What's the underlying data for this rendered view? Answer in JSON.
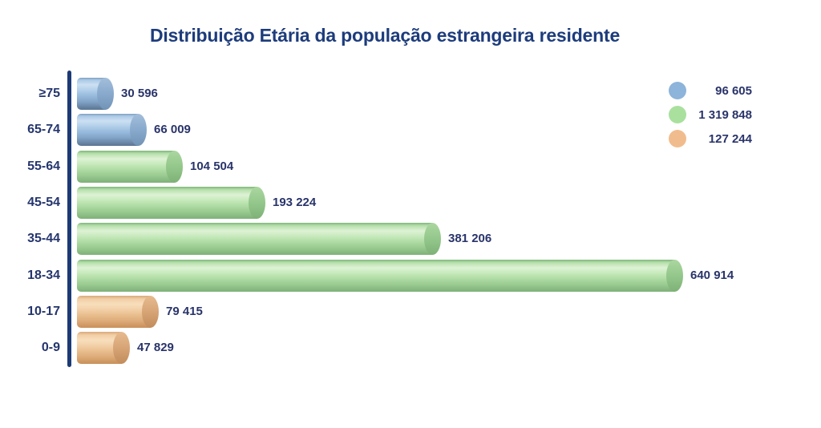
{
  "chart_data": {
    "type": "bar",
    "orientation": "horizontal",
    "title": "Distribuição Etária da população estrangeira residente",
    "categories": [
      "≥75",
      "65-74",
      "55-64",
      "45-54",
      "35-44",
      "18-34",
      "10-17",
      "0-9"
    ],
    "values": [
      30596,
      66009,
      104504,
      193224,
      381206,
      640914,
      79415,
      47829
    ],
    "value_labels": [
      "30 596",
      "66 009",
      "104 504",
      "193 224",
      "381 206",
      "640 914",
      "79 415",
      "47 829"
    ],
    "bar_groups": [
      "senior",
      "senior",
      "adult",
      "adult",
      "adult",
      "adult",
      "minor",
      "minor"
    ],
    "legend": [
      {
        "group": "senior",
        "color": "#8db4da",
        "label": "96 605"
      },
      {
        "group": "adult",
        "color": "#a9e09e",
        "label": "1 319 848"
      },
      {
        "group": "minor",
        "color": "#f1bc8d",
        "label": "127 244"
      }
    ],
    "legend_position": "top-right",
    "grid": false,
    "axis_color": "#1d3a75",
    "text_color": "#24356d",
    "title_color": "#1d3c7c",
    "group_css_class": {
      "senior": "blue",
      "adult": "green",
      "minor": "orange"
    }
  }
}
